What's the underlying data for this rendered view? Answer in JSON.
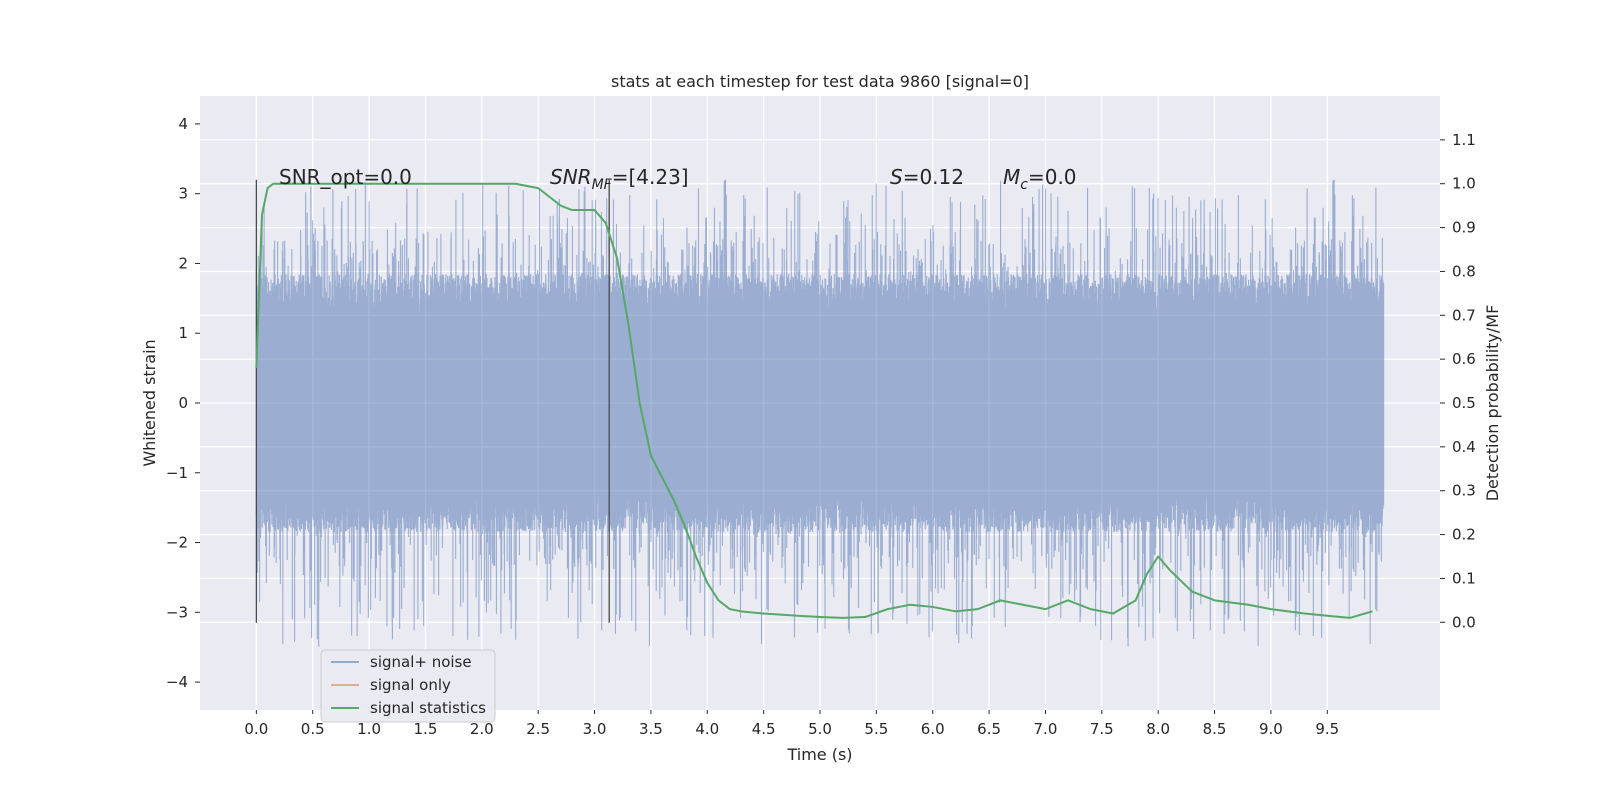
{
  "chart_data": {
    "type": "line",
    "title": "stats at each timestep for test data 9860 [signal=0]",
    "xlabel": "Time (s)",
    "ylabel": "Whitened strain",
    "ylabel_right": "Detection probability/MF",
    "xlim": [
      -0.5,
      10.5
    ],
    "ylim": [
      -4.4,
      4.4
    ],
    "ylim_right": [
      -0.2,
      1.2
    ],
    "x_ticks": [
      "0.0",
      "0.5",
      "1.0",
      "1.5",
      "2.0",
      "2.5",
      "3.0",
      "3.5",
      "4.0",
      "4.5",
      "5.0",
      "5.5",
      "6.0",
      "6.5",
      "7.0",
      "7.5",
      "8.0",
      "8.5",
      "9.0",
      "9.5"
    ],
    "y_ticks": [
      "4",
      "3",
      "2",
      "1",
      "0",
      "−1",
      "−2",
      "−3",
      "−4"
    ],
    "y_right_ticks": [
      "1.1",
      "1.0",
      "0.9",
      "0.8",
      "0.7",
      "0.6",
      "0.5",
      "0.4",
      "0.3",
      "0.2",
      "0.1",
      "0.0"
    ],
    "grid": true,
    "legend_position": "lower-left",
    "annotations": {
      "snr_opt": "SNR_opt=0.0",
      "snr_mf_base": "SNR",
      "snr_mf_sub": "MF",
      "snr_mf_value": "=[4.23]",
      "s_label": "S",
      "s_value": "=0.12",
      "mc_base": "M",
      "mc_sub": "c",
      "mc_value": "=0.0"
    },
    "vertical_markers": [
      {
        "x": 0.0,
        "y_range": [
          -3.15,
          3.2
        ]
      },
      {
        "x": 3.13,
        "y_range": [
          -3.15,
          3.2
        ]
      }
    ],
    "series": [
      {
        "name": "signal+ noise",
        "color": "#4c72b0",
        "style": "noise",
        "x_range": [
          0.0,
          10.0
        ],
        "typical_amplitude": 1.25
      },
      {
        "name": "signal only",
        "color": "#dd8452",
        "values": []
      },
      {
        "name": "signal statistics",
        "color": "#55a868",
        "axis": "right",
        "x": [
          0.0,
          0.05,
          0.1,
          0.15,
          0.2,
          0.3,
          0.5,
          1.0,
          1.5,
          2.0,
          2.3,
          2.5,
          2.6,
          2.7,
          2.8,
          2.9,
          3.0,
          3.1,
          3.2,
          3.3,
          3.4,
          3.5,
          3.6,
          3.7,
          3.8,
          3.9,
          4.0,
          4.1,
          4.2,
          4.3,
          4.5,
          4.8,
          5.0,
          5.2,
          5.4,
          5.6,
          5.8,
          6.0,
          6.2,
          6.4,
          6.6,
          6.8,
          7.0,
          7.2,
          7.4,
          7.6,
          7.8,
          7.9,
          8.0,
          8.1,
          8.3,
          8.5,
          8.8,
          9.0,
          9.3,
          9.5,
          9.7,
          9.9
        ],
        "y": [
          0.58,
          0.93,
          0.99,
          1.0,
          1.0,
          1.0,
          1.0,
          1.0,
          1.0,
          1.0,
          1.0,
          0.99,
          0.97,
          0.95,
          0.94,
          0.94,
          0.94,
          0.91,
          0.83,
          0.68,
          0.5,
          0.38,
          0.33,
          0.28,
          0.22,
          0.15,
          0.09,
          0.05,
          0.03,
          0.025,
          0.02,
          0.015,
          0.012,
          0.01,
          0.012,
          0.03,
          0.04,
          0.035,
          0.025,
          0.03,
          0.05,
          0.04,
          0.03,
          0.05,
          0.03,
          0.02,
          0.05,
          0.11,
          0.15,
          0.12,
          0.07,
          0.05,
          0.04,
          0.03,
          0.02,
          0.015,
          0.01,
          0.025
        ]
      }
    ]
  }
}
